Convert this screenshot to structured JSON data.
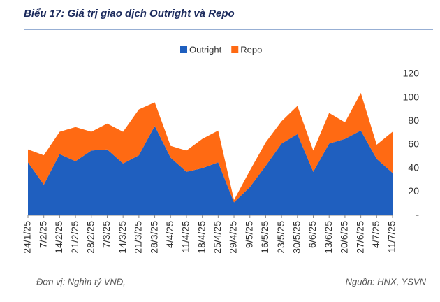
{
  "chart_data": {
    "type": "stacked_area",
    "title": "Biểu 17: Giá trị giao dịch Outright và Repo",
    "unit_note": "Đơn vị: Nghìn tỷ VNĐ,",
    "source": "Nguồn: HNX, YSVN",
    "categories": [
      "24/1/25",
      "7/2/25",
      "14/2/25",
      "21/2/25",
      "28/2/25",
      "7/3/25",
      "14/3/25",
      "21/3/25",
      "28/3/25",
      "4/4/25",
      "11/4/25",
      "18/4/25",
      "25/4/25",
      "29/4/25",
      "9/5/25",
      "16/5/25",
      "23/5/25",
      "30/5/25",
      "6/6/25",
      "13/6/25",
      "20/6/25",
      "27/6/25",
      "4/7/25",
      "11/7/25"
    ],
    "series": [
      {
        "name": "Outright",
        "color": "#1f5fbf",
        "values": [
          45,
          26,
          52,
          46,
          55,
          56,
          44,
          51,
          76,
          49,
          37,
          40,
          45,
          11,
          24,
          42,
          61,
          69,
          37,
          61,
          65,
          72,
          48,
          36
        ]
      },
      {
        "name": "Repo",
        "color": "#ff6a13",
        "values": [
          11,
          25,
          19,
          29,
          16,
          22,
          27,
          39,
          20,
          10,
          18,
          25,
          27,
          2,
          14,
          20,
          19,
          24,
          18,
          26,
          14,
          32,
          12,
          35
        ]
      }
    ],
    "ylim": [
      0,
      120
    ],
    "yticks": [
      {
        "value": 0,
        "label": "-"
      },
      20,
      40,
      60,
      80,
      100,
      120
    ],
    "legend": "top"
  }
}
